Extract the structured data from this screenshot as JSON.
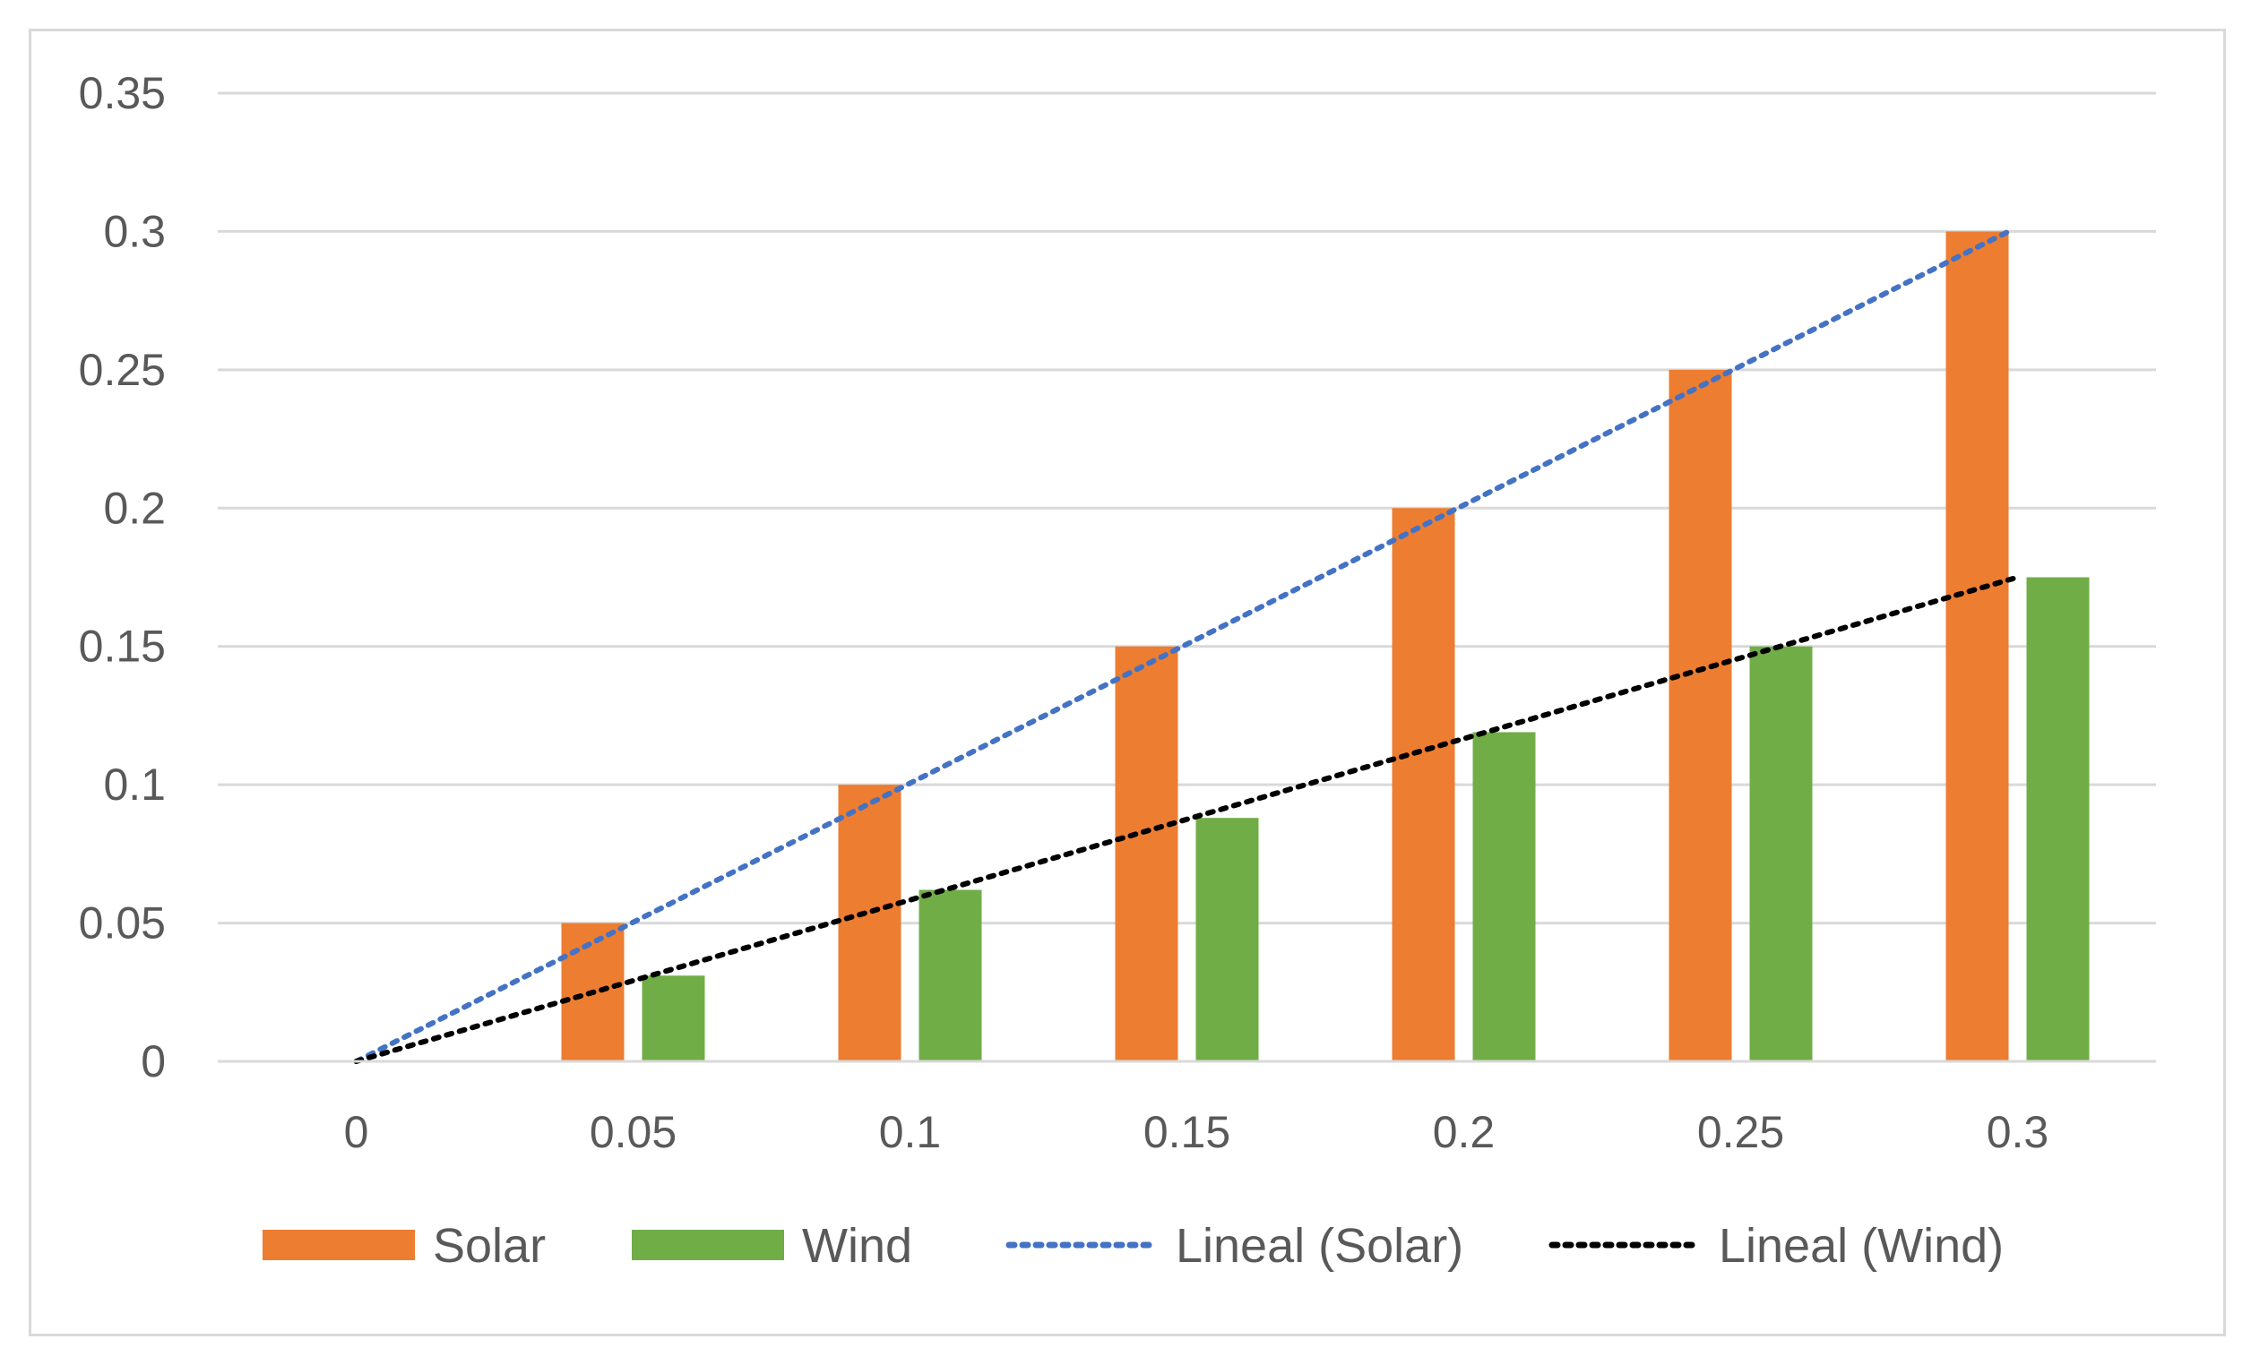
{
  "chart_data": {
    "type": "bar",
    "title": "",
    "xlabel": "",
    "ylabel": "",
    "categories": [
      "0",
      "0.05",
      "0.1",
      "0.15",
      "0.2",
      "0.25",
      "0.3"
    ],
    "series": [
      {
        "name": "Solar",
        "color": "#ED7D31",
        "values": [
          0,
          0.05,
          0.1,
          0.15,
          0.2,
          0.25,
          0.3
        ]
      },
      {
        "name": "Wind",
        "color": "#70AD47",
        "values": [
          0,
          0.031,
          0.062,
          0.088,
          0.119,
          0.15,
          0.175
        ]
      }
    ],
    "trendlines": [
      {
        "name": "Lineal (Solar)",
        "color": "#4472C4",
        "style": "dotted",
        "start": 0,
        "end": 0.3
      },
      {
        "name": "Lineal (Wind)",
        "color": "#000000",
        "style": "dotted",
        "start": 0,
        "end": 0.175
      }
    ],
    "yticks": [
      "0",
      "0.05",
      "0.1",
      "0.15",
      "0.2",
      "0.25",
      "0.3",
      "0.35"
    ],
    "ylim": [
      0,
      0.35
    ],
    "grid": true,
    "legend": "bottom",
    "colors": {
      "grid": "#d9d9d9",
      "text": "#595959"
    }
  }
}
